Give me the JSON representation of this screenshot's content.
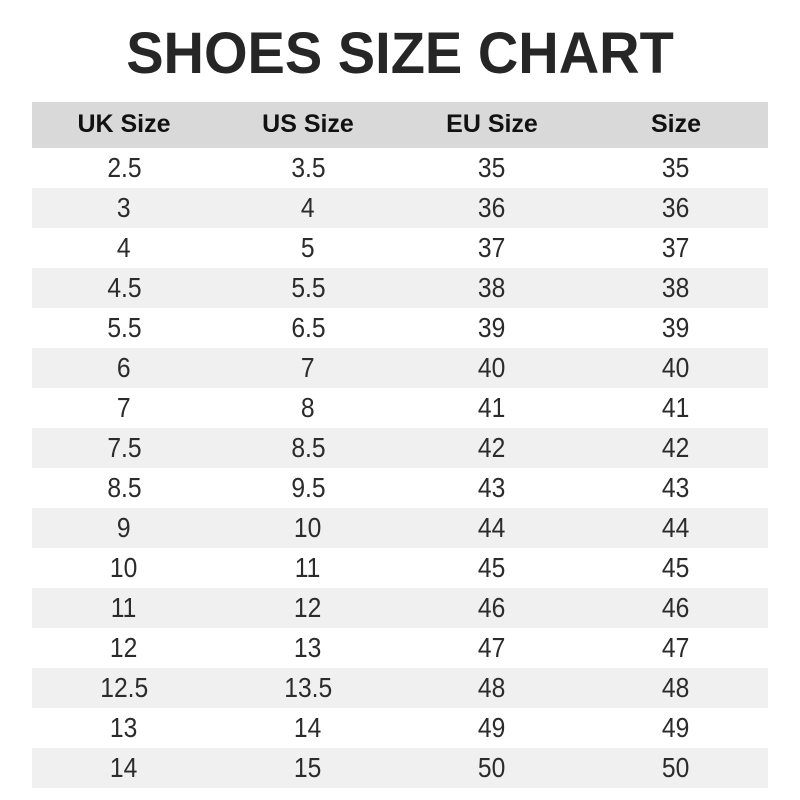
{
  "title": "SHOES SIZE CHART",
  "chart_data": {
    "type": "table",
    "title": "SHOES SIZE CHART",
    "columns": [
      "UK Size",
      "US Size",
      "EU Size",
      "Size"
    ],
    "rows": [
      [
        "2.5",
        "3.5",
        "35",
        "35"
      ],
      [
        "3",
        "4",
        "36",
        "36"
      ],
      [
        "4",
        "5",
        "37",
        "37"
      ],
      [
        "4.5",
        "5.5",
        "38",
        "38"
      ],
      [
        "5.5",
        "6.5",
        "39",
        "39"
      ],
      [
        "6",
        "7",
        "40",
        "40"
      ],
      [
        "7",
        "8",
        "41",
        "41"
      ],
      [
        "7.5",
        "8.5",
        "42",
        "42"
      ],
      [
        "8.5",
        "9.5",
        "43",
        "43"
      ],
      [
        "9",
        "10",
        "44",
        "44"
      ],
      [
        "10",
        "11",
        "45",
        "45"
      ],
      [
        "11",
        "12",
        "46",
        "46"
      ],
      [
        "12",
        "13",
        "47",
        "47"
      ],
      [
        "12.5",
        "13.5",
        "48",
        "48"
      ],
      [
        "13",
        "14",
        "49",
        "49"
      ],
      [
        "14",
        "15",
        "50",
        "50"
      ]
    ],
    "layout": {
      "stripe_pattern": "even rows shaded",
      "grid": "off",
      "column_alignment": "center"
    }
  },
  "colors": {
    "page_bg": "#ffffff",
    "header_bg": "#d9d9d9",
    "stripe_bg": "#f0f0f0",
    "row_bg": "#ffffff",
    "title_color": "#262626",
    "header_text": "#111111",
    "cell_text": "#2b2b2b"
  }
}
